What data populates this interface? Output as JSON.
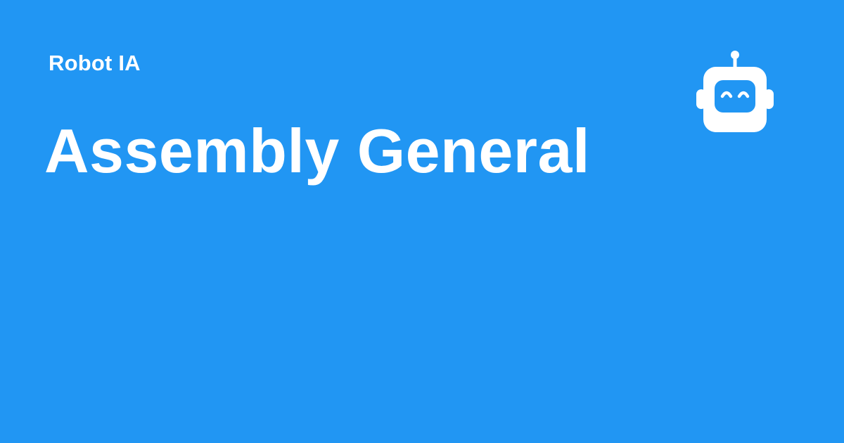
{
  "brand": {
    "name": "Robot IA",
    "logo_icon": "robot-face-icon"
  },
  "page": {
    "title": "Assembly General"
  },
  "colors": {
    "background": "#2196f3",
    "text": "#ffffff"
  }
}
